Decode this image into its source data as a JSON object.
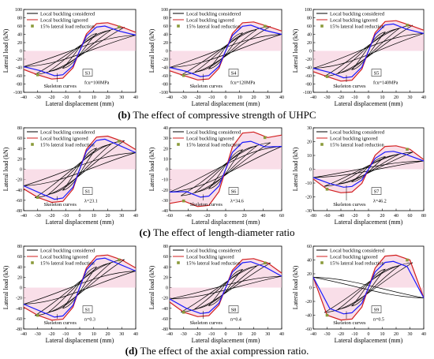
{
  "captions": [
    {
      "letter": "(b)",
      "text": "The effect of compressive strength of UHPC"
    },
    {
      "letter": "(c)",
      "text": "The effect of length-diameter ratio"
    },
    {
      "letter": "(d)",
      "text": "The effect of the axial compression ratio."
    }
  ],
  "legend_labels": {
    "considered": "Local buckling considered",
    "ignored": "Local buckling ignored",
    "reduction": "15% lateral load reduction"
  },
  "annotation_skeleton": "Skeleton curves",
  "colors": {
    "hysteresis": "#000000",
    "considered": "#1a1aff",
    "ignored": "#d21e1e",
    "reduction_marker": "#8a9a3a",
    "fill": "#f4c3d6"
  },
  "chart_data": [
    {
      "type": "line",
      "specimen": "S3",
      "param": "fcu=100MPa",
      "xlabel": "Lateral displacement (mm)",
      "ylabel": "Lateral load (kN)",
      "xlim": [
        -40,
        40
      ],
      "ylim": [
        -100,
        100
      ],
      "xticks": [
        -40,
        -30,
        -20,
        -10,
        0,
        10,
        20,
        30,
        40
      ],
      "yticks": [
        -100,
        -80,
        -60,
        -40,
        -20,
        0,
        20,
        40,
        60,
        80,
        100
      ],
      "peak": 60,
      "ignored_peak": 68,
      "ignored_end": 45,
      "considered_end": 38
    },
    {
      "type": "line",
      "specimen": "S4",
      "param": "fcu=120MPa",
      "xlabel": "Lateral displacement (mm)",
      "ylabel": "Lateral load (kN)",
      "xlim": [
        -40,
        40
      ],
      "ylim": [
        -100,
        100
      ],
      "xticks": [
        -40,
        -30,
        -20,
        -10,
        0,
        10,
        20,
        30,
        40
      ],
      "yticks": [
        -100,
        -80,
        -60,
        -40,
        -20,
        0,
        20,
        40,
        60,
        80,
        100
      ],
      "peak": 62,
      "ignored_peak": 70,
      "ignored_end": 48,
      "considered_end": 40
    },
    {
      "type": "line",
      "specimen": "S5",
      "param": "fcu=140MPa",
      "xlabel": "Lateral displacement (mm)",
      "ylabel": "Lateral load (kN)",
      "xlim": [
        -40,
        40
      ],
      "ylim": [
        -100,
        100
      ],
      "xticks": [
        -40,
        -30,
        -20,
        -10,
        0,
        10,
        20,
        30,
        40
      ],
      "yticks": [
        -100,
        -80,
        -60,
        -40,
        -20,
        0,
        20,
        40,
        60,
        80,
        100
      ],
      "peak": 65,
      "ignored_peak": 73,
      "ignored_end": 50,
      "considered_end": 42
    },
    {
      "type": "line",
      "specimen": "S1",
      "param": "λ=23.1",
      "xlabel": "Lateral displacement (mm)",
      "ylabel": "Lateral load (kN)",
      "xlim": [
        -40,
        40
      ],
      "ylim": [
        -80,
        80
      ],
      "xticks": [
        -40,
        -30,
        -20,
        -10,
        0,
        10,
        20,
        30,
        40
      ],
      "yticks": [
        -80,
        -60,
        -40,
        -20,
        0,
        20,
        40,
        60,
        80
      ],
      "peak": 58,
      "ignored_peak": 64,
      "ignored_end": 38,
      "considered_end": 32
    },
    {
      "type": "line",
      "specimen": "S6",
      "param": "λ=34.6",
      "xlabel": "Lateral displacement (mm)",
      "ylabel": "Lateral load (kN)",
      "xlim": [
        -60,
        60
      ],
      "ylim": [
        -40,
        40
      ],
      "xticks": [
        -60,
        -40,
        -20,
        0,
        20,
        40,
        60
      ],
      "yticks": [
        -40,
        -30,
        -20,
        -10,
        0,
        10,
        20,
        30,
        40
      ],
      "peak": 27,
      "ignored_peak": 36,
      "ignored_end": 33,
      "considered_end": 22
    },
    {
      "type": "line",
      "specimen": "S7",
      "param": "λ=46.2",
      "xlabel": "Lateral displacement (mm)",
      "ylabel": "Lateral load (kN)",
      "xlim": [
        -80,
        80
      ],
      "ylim": [
        -30,
        30
      ],
      "xticks": [
        -80,
        -60,
        -40,
        -20,
        0,
        20,
        40,
        60,
        80
      ],
      "yticks": [
        -30,
        -20,
        -10,
        0,
        10,
        20,
        30
      ],
      "peak": 13,
      "ignored_peak": 17,
      "ignored_end": 7,
      "considered_end": 6
    },
    {
      "type": "line",
      "specimen": "S1",
      "param": "n=0.3",
      "xlabel": "Lateral displacement (mm)",
      "ylabel": "Lateral load (kN)",
      "xlim": [
        -40,
        40
      ],
      "ylim": [
        -80,
        80
      ],
      "xticks": [
        -40,
        -30,
        -20,
        -10,
        0,
        10,
        20,
        30,
        40
      ],
      "yticks": [
        -80,
        -60,
        -40,
        -20,
        0,
        20,
        40,
        60,
        80
      ],
      "peak": 57,
      "ignored_peak": 63,
      "ignored_end": 38,
      "considered_end": 32
    },
    {
      "type": "line",
      "specimen": "S8",
      "param": "n=0.4",
      "xlabel": "Lateral displacement (mm)",
      "ylabel": "Lateral load (kN)",
      "xlim": [
        -40,
        40
      ],
      "ylim": [
        -80,
        80
      ],
      "xticks": [
        -40,
        -30,
        -20,
        -10,
        0,
        10,
        20,
        30,
        40
      ],
      "yticks": [
        -80,
        -60,
        -40,
        -20,
        0,
        20,
        40,
        60,
        80
      ],
      "peak": 50,
      "ignored_peak": 56,
      "ignored_end": 28,
      "considered_end": 22
    },
    {
      "type": "line",
      "specimen": "S9",
      "param": "n=0.5",
      "xlabel": "Lateral displacement (mm)",
      "ylabel": "Lateral load (kN)",
      "xlim": [
        -40,
        40
      ],
      "ylim": [
        -60,
        60
      ],
      "xticks": [
        -40,
        -30,
        -20,
        -10,
        0,
        10,
        20,
        30,
        40
      ],
      "yticks": [
        -60,
        -40,
        -20,
        0,
        20,
        40,
        60
      ],
      "peak": 38,
      "ignored_peak": 47,
      "ignored_end": -15,
      "considered_end": -15
    }
  ]
}
